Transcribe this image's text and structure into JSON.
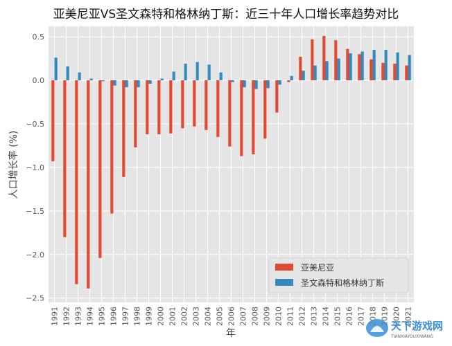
{
  "chart_data": {
    "type": "bar",
    "title": "亚美尼亚VS圣文森特和格林纳丁斯：近三十年人口增长率趋势对比",
    "xlabel": "年",
    "ylabel": "人口增长率 (%)",
    "ylim": [
      -2.55,
      0.62
    ],
    "yticks": [
      "0.5",
      "0.0",
      "−0.5",
      "−1.0",
      "−1.5",
      "−2.0",
      "−2.5"
    ],
    "ytick_values": [
      0.5,
      0.0,
      -0.5,
      -1.0,
      -1.5,
      -2.0,
      -2.5
    ],
    "grid": true,
    "legend_position": "bottom-right",
    "categories": [
      "1991",
      "1992",
      "1993",
      "1994",
      "1995",
      "1996",
      "1997",
      "1998",
      "1999",
      "2000",
      "2001",
      "2002",
      "2003",
      "2004",
      "2005",
      "2006",
      "2007",
      "2008",
      "2009",
      "2010",
      "2011",
      "2012",
      "2013",
      "2014",
      "2015",
      "2016",
      "2017",
      "2018",
      "2019",
      "2020",
      "2021"
    ],
    "series": [
      {
        "name": "亚美尼亚",
        "color": "#E24A33",
        "values": [
          -0.93,
          -1.8,
          -2.34,
          -2.39,
          -2.04,
          -1.53,
          -1.11,
          -0.77,
          -0.62,
          -0.62,
          -0.61,
          -0.55,
          -0.53,
          -0.57,
          -0.65,
          -0.76,
          -0.87,
          -0.85,
          -0.67,
          -0.37,
          -0.02,
          0.27,
          0.47,
          0.51,
          0.46,
          0.36,
          0.3,
          0.24,
          0.2,
          0.19,
          0.17
        ]
      },
      {
        "name": "圣文森特和格林纳丁斯",
        "color": "#348ABD",
        "values": [
          0.26,
          0.16,
          0.09,
          0.02,
          -0.01,
          -0.06,
          -0.08,
          -0.08,
          -0.04,
          0.02,
          0.1,
          0.19,
          0.21,
          0.18,
          0.09,
          -0.02,
          -0.08,
          -0.1,
          -0.09,
          -0.05,
          0.05,
          0.11,
          0.17,
          0.22,
          0.25,
          0.31,
          0.33,
          0.35,
          0.35,
          0.32,
          0.29
        ]
      }
    ]
  },
  "watermark": {
    "text": "天下游戏网",
    "subtext": "TIANXIAYOUXIWANG"
  }
}
